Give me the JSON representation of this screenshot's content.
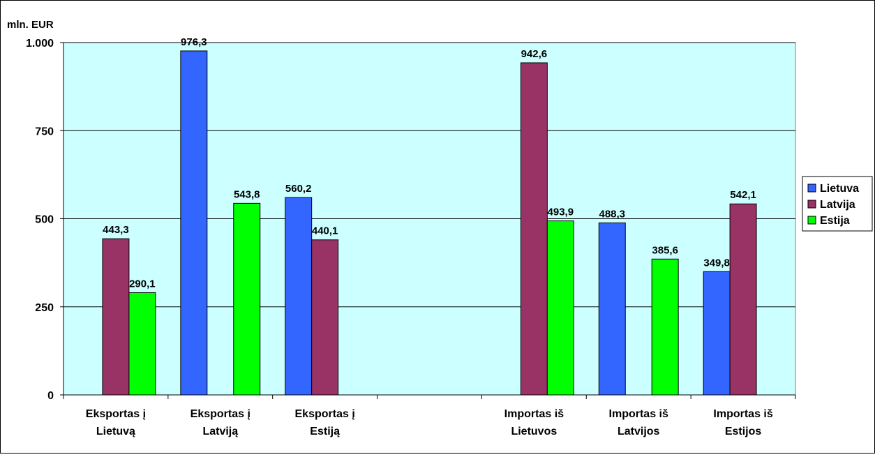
{
  "chart_data": {
    "type": "bar",
    "ylabel": "mln. EUR",
    "ylim": [
      0,
      1000
    ],
    "y_ticks": [
      {
        "value": 0,
        "label": "0"
      },
      {
        "value": 250,
        "label": "250"
      },
      {
        "value": 500,
        "label": "500"
      },
      {
        "value": 750,
        "label": "750"
      },
      {
        "value": 1000,
        "label": "1.000"
      }
    ],
    "categories": [
      [
        "Eksportas į",
        "Lietuvą"
      ],
      [
        "Eksportas į",
        "Latviją"
      ],
      [
        "Eksportas į",
        "Estiją"
      ],
      [
        "",
        ""
      ],
      [
        "Importas iš",
        "Lietuvos"
      ],
      [
        "Importas iš",
        "Latvijos"
      ],
      [
        "Importas iš",
        "Estijos"
      ]
    ],
    "series": [
      {
        "name": "Lietuva",
        "color": "#3366FF",
        "values": [
          null,
          976.3,
          560.2,
          null,
          null,
          488.3,
          349.8
        ],
        "labels": [
          null,
          "976,3",
          "560,2",
          null,
          null,
          "488,3",
          "349,8"
        ]
      },
      {
        "name": "Latvija",
        "color": "#993366",
        "values": [
          443.3,
          null,
          440.1,
          null,
          942.6,
          null,
          542.1
        ],
        "labels": [
          "443,3",
          null,
          "440,1",
          null,
          "942,6",
          null,
          "542,1"
        ]
      },
      {
        "name": "Estija",
        "color": "#00FF00",
        "values": [
          290.1,
          543.8,
          null,
          null,
          493.9,
          385.6,
          null
        ],
        "labels": [
          "290,1",
          "543,8",
          null,
          null,
          "493,9",
          "385,6",
          null
        ]
      }
    ],
    "grid": true,
    "legend_position": "right",
    "plot_background": "#CCFFFF"
  }
}
